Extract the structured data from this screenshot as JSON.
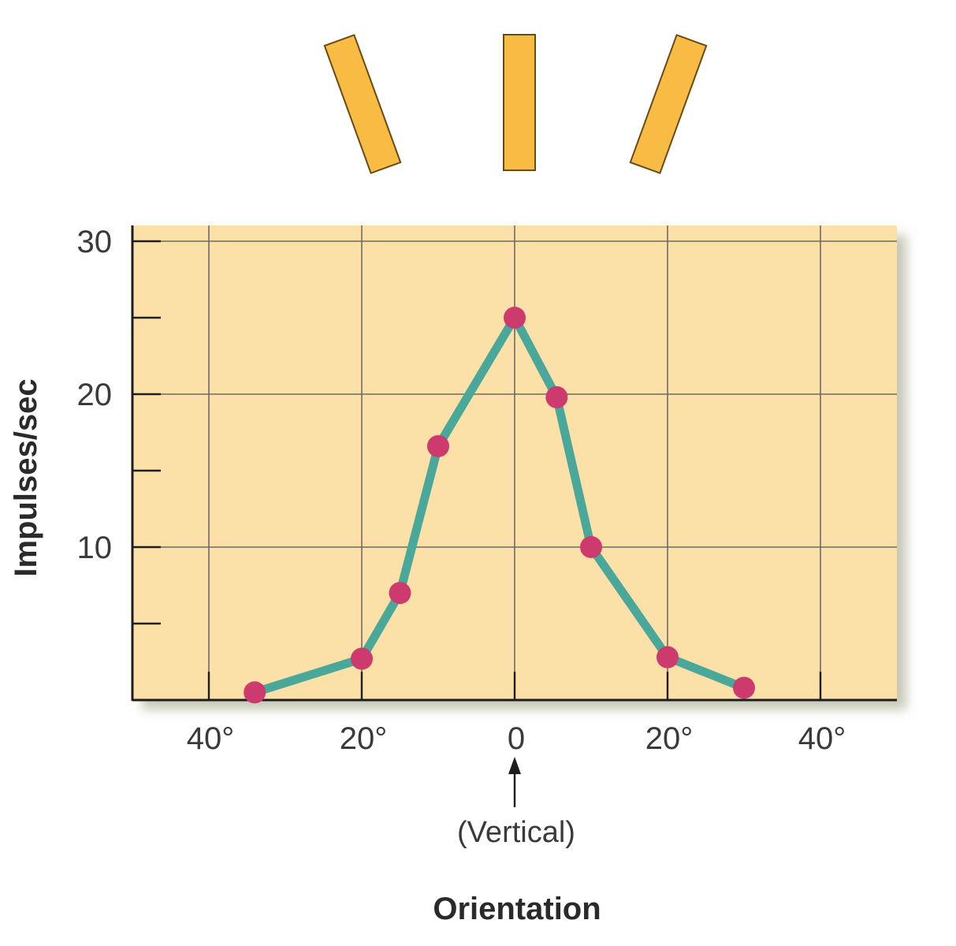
{
  "colors": {
    "plot_background": "#fbe0a8",
    "grid": "#6e6a62",
    "axis": "#1e1e1e",
    "line": "#4aa89a",
    "marker": "#cc3a6e",
    "bar_fill": "#f8bb44",
    "bar_stroke": "#6a4a14"
  },
  "stimulus_bars": [
    {
      "name": "bar-tilted-left",
      "angle_deg": -20
    },
    {
      "name": "bar-vertical",
      "angle_deg": 0
    },
    {
      "name": "bar-tilted-right",
      "angle_deg": 20
    }
  ],
  "chart_data": {
    "type": "line",
    "title": "",
    "xlabel": "Orientation",
    "ylabel": "Impulses/sec",
    "x_annotation": {
      "at": 0,
      "text": "(Vertical)",
      "arrow": "up"
    },
    "xlim": [
      -50,
      50
    ],
    "ylim": [
      0,
      30
    ],
    "x_ticks": [
      {
        "value": -40,
        "label": "40°"
      },
      {
        "value": -20,
        "label": "20°"
      },
      {
        "value": 0,
        "label": "0"
      },
      {
        "value": 20,
        "label": "20°"
      },
      {
        "value": 40,
        "label": "40°"
      }
    ],
    "y_ticks_labeled": [
      {
        "value": 10,
        "label": "10"
      },
      {
        "value": 20,
        "label": "20"
      },
      {
        "value": 30,
        "label": "30"
      }
    ],
    "y_ticks_minor": [
      5,
      15,
      25
    ],
    "grid": true,
    "series": [
      {
        "points": [
          {
            "x": -34,
            "y": 0.5
          },
          {
            "x": -20,
            "y": 2.7
          },
          {
            "x": -15,
            "y": 7.0
          },
          {
            "x": -10,
            "y": 16.6
          },
          {
            "x": 0,
            "y": 25.0
          },
          {
            "x": 5.5,
            "y": 19.8
          },
          {
            "x": 10,
            "y": 10.0
          },
          {
            "x": 20,
            "y": 2.8
          },
          {
            "x": 30,
            "y": 0.8
          }
        ]
      }
    ]
  }
}
